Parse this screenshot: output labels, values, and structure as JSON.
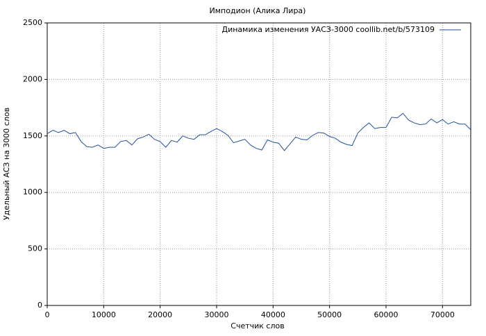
{
  "chart_data": {
    "type": "line",
    "title": "Имподион (Алика Лира)",
    "x_label": "Счетчик слов",
    "y_label": "Удельный АСЗ на 3000 слов",
    "x": [
      0,
      1000,
      2000,
      3000,
      4000,
      5000,
      6000,
      7000,
      8000,
      9000,
      10000,
      11000,
      12000,
      13000,
      14000,
      15000,
      16000,
      17000,
      18000,
      19000,
      20000,
      21000,
      22000,
      23000,
      24000,
      25000,
      26000,
      27000,
      28000,
      29000,
      30000,
      31000,
      32000,
      33000,
      34000,
      35000,
      36000,
      37000,
      38000,
      39000,
      40000,
      41000,
      42000,
      43000,
      44000,
      45000,
      46000,
      47000,
      48000,
      49000,
      50000,
      51000,
      52000,
      53000,
      54000,
      55000,
      56000,
      57000,
      58000,
      59000,
      60000,
      61000,
      62000,
      63000,
      64000,
      65000,
      66000,
      67000,
      68000,
      69000,
      70000,
      71000,
      72000,
      73000,
      74000,
      75000
    ],
    "series": [
      {
        "name": "Динамика изменения УАСЗ-3000 coollib.net/b/573109",
        "color": "#1f4f9f",
        "values": [
          1520,
          1550,
          1530,
          1550,
          1520,
          1530,
          1450,
          1405,
          1400,
          1420,
          1390,
          1400,
          1400,
          1450,
          1460,
          1420,
          1475,
          1490,
          1515,
          1470,
          1450,
          1400,
          1460,
          1445,
          1500,
          1480,
          1470,
          1510,
          1510,
          1540,
          1565,
          1540,
          1505,
          1440,
          1455,
          1470,
          1420,
          1390,
          1375,
          1465,
          1445,
          1435,
          1370,
          1430,
          1490,
          1470,
          1465,
          1505,
          1530,
          1525,
          1495,
          1480,
          1445,
          1425,
          1415,
          1525,
          1575,
          1615,
          1565,
          1575,
          1575,
          1665,
          1660,
          1700,
          1640,
          1615,
          1600,
          1605,
          1650,
          1615,
          1645,
          1605,
          1625,
          1605,
          1605,
          1555
        ]
      }
    ],
    "xlim": [
      0,
      75000
    ],
    "xticks": [
      0,
      10000,
      20000,
      30000,
      40000,
      50000,
      60000,
      70000
    ],
    "ylim": [
      0,
      2500
    ],
    "yticks": [
      0,
      500,
      1000,
      1500,
      2000,
      2500
    ],
    "grid": true,
    "legend": "upper-right"
  }
}
